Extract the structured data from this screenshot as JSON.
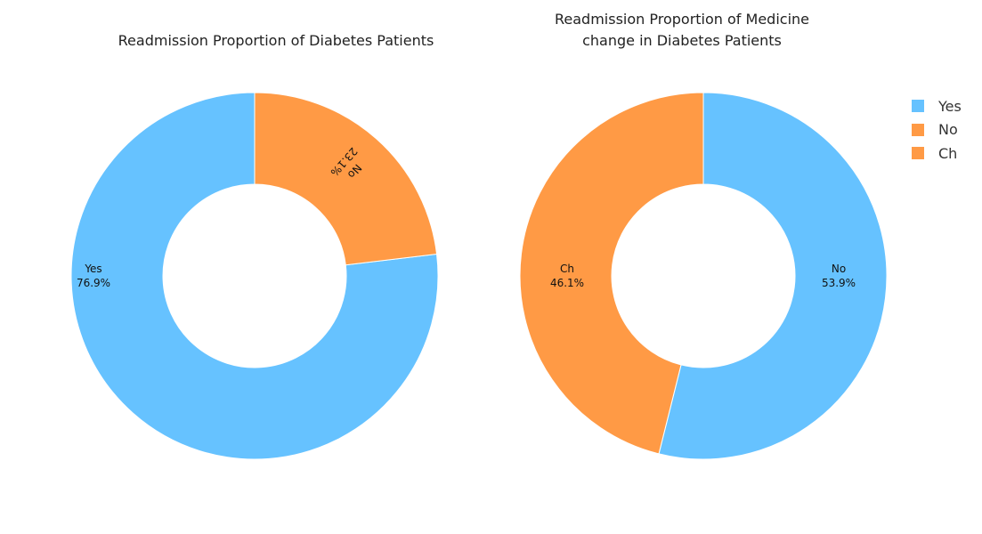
{
  "chart_data": [
    {
      "type": "pie",
      "title": "Readmission Proportion of Diabetes Patients",
      "slices": [
        {
          "label": "Yes",
          "value": 76.9,
          "color": "#66c2ff"
        },
        {
          "label": "No",
          "value": 23.1,
          "color": "#ff9a45"
        }
      ],
      "hole": true
    },
    {
      "type": "pie",
      "title": "Readmission Proportion of Medicine change in Diabetes Patients",
      "title_lines": [
        "Readmission Proportion of Medicine",
        "change in Diabetes Patients"
      ],
      "slices": [
        {
          "label": "No",
          "value": 53.9,
          "color": "#66c2ff"
        },
        {
          "label": "Ch",
          "value": 46.1,
          "color": "#ff9a45"
        }
      ],
      "hole": true
    }
  ],
  "legend": {
    "placement": "top-right",
    "items": [
      {
        "label": "Yes",
        "color": "#66c2ff"
      },
      {
        "label": "No",
        "color": "#ff9a45"
      },
      {
        "label": "Ch",
        "color": "#ff9a45"
      }
    ]
  }
}
